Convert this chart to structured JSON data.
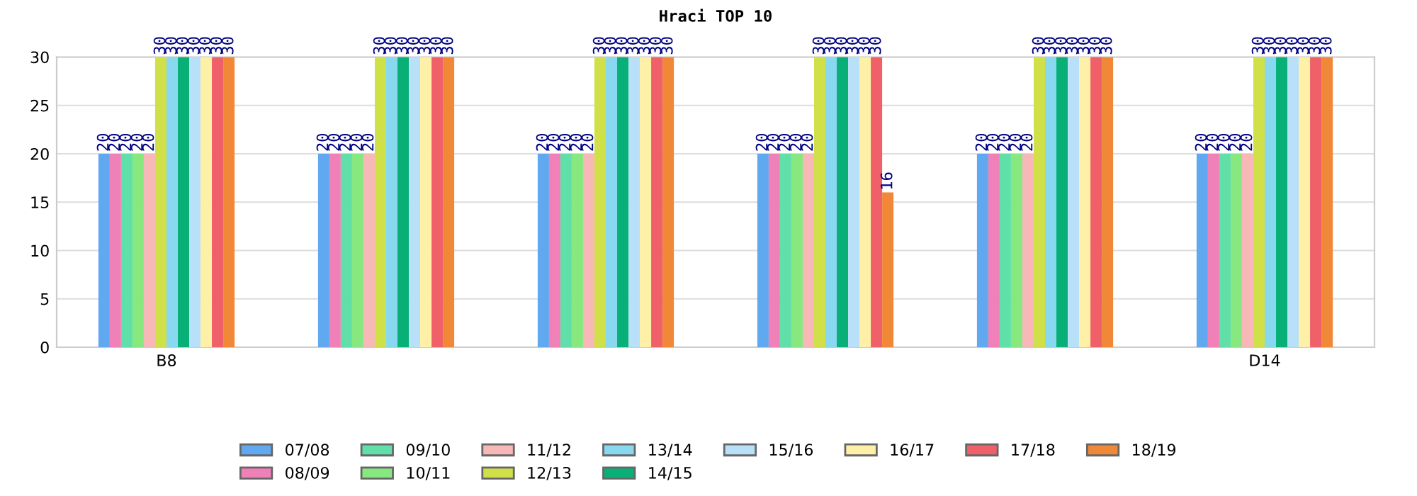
{
  "chart_data": {
    "type": "bar",
    "title": "Hraci TOP 10",
    "categories": [
      "B8",
      null,
      null,
      null,
      null,
      "D14"
    ],
    "series": [
      {
        "name": "07/08",
        "color": "#60a8f0",
        "values": [
          20,
          20,
          20,
          20,
          20,
          20
        ]
      },
      {
        "name": "08/09",
        "color": "#f080b8",
        "values": [
          20,
          20,
          20,
          20,
          20,
          20
        ]
      },
      {
        "name": "09/10",
        "color": "#60e0a8",
        "values": [
          20,
          20,
          20,
          20,
          20,
          20
        ]
      },
      {
        "name": "10/11",
        "color": "#88e880",
        "values": [
          20,
          20,
          20,
          20,
          20,
          20
        ]
      },
      {
        "name": "11/12",
        "color": "#f8b8b8",
        "values": [
          20,
          20,
          20,
          20,
          20,
          20
        ]
      },
      {
        "name": "12/13",
        "color": "#d0e048",
        "values": [
          30,
          30,
          30,
          30,
          30,
          30
        ]
      },
      {
        "name": "13/14",
        "color": "#88d8f0",
        "values": [
          30,
          30,
          30,
          30,
          30,
          30
        ]
      },
      {
        "name": "14/15",
        "color": "#08b078",
        "values": [
          30,
          30,
          30,
          30,
          30,
          30
        ]
      },
      {
        "name": "15/16",
        "color": "#b8e0f8",
        "values": [
          30,
          30,
          30,
          30,
          30,
          30
        ]
      },
      {
        "name": "16/17",
        "color": "#fff0a8",
        "values": [
          30,
          30,
          30,
          30,
          30,
          30
        ]
      },
      {
        "name": "17/18",
        "color": "#f06068",
        "values": [
          30,
          30,
          30,
          30,
          30,
          30
        ]
      },
      {
        "name": "18/19",
        "color": "#f08838",
        "values": [
          30,
          30,
          30,
          16,
          30,
          30
        ]
      }
    ],
    "ylim": [
      0,
      30
    ],
    "yticks": [
      0,
      5,
      10,
      15,
      20,
      25,
      30
    ],
    "grid": "y",
    "data_labels": true,
    "legend": "bottom"
  }
}
